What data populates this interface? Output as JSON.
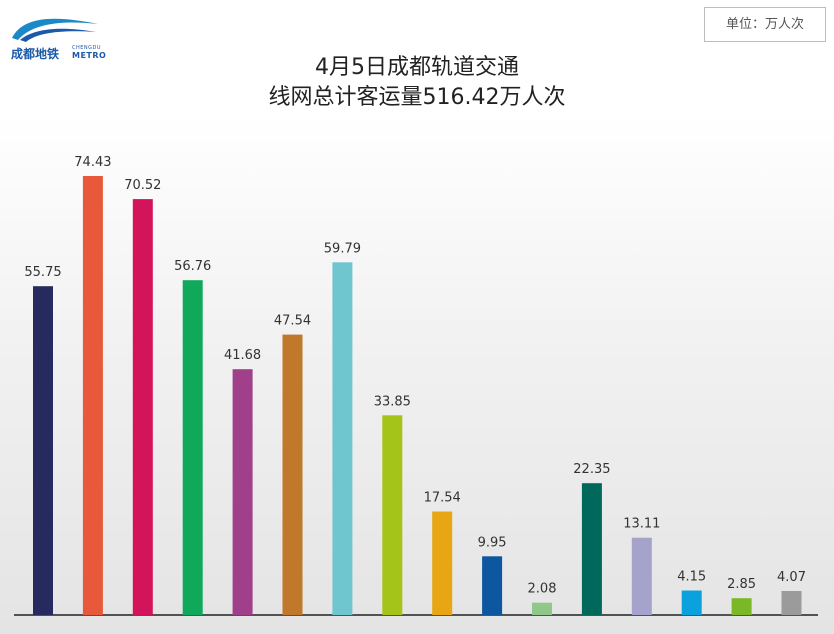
{
  "brand": {
    "name_cn": "成都地铁",
    "name_en_top": "CHENGDU",
    "name_en_bottom": "METRO",
    "color": "#1b5aa8"
  },
  "unit_label": "单位：万人次",
  "title_line1": "4月5日成都轨道交通",
  "title_line2": "线网总计客运量516.42万人次",
  "chart_data": {
    "type": "bar",
    "title": "4月5日成都轨道交通 线网总计客运量516.42万人次",
    "unit": "单位：万人次",
    "categories": [
      "",
      "",
      "",
      "",
      "",
      "",
      "",
      "",
      "",
      "",
      "",
      "",
      "",
      "",
      "",
      ""
    ],
    "values": [
      55.75,
      74.43,
      70.52,
      56.76,
      41.68,
      47.54,
      59.79,
      33.85,
      17.54,
      9.95,
      2.08,
      22.35,
      13.11,
      4.15,
      2.85,
      4.07
    ],
    "value_labels": [
      "55.75",
      "74.43",
      "70.52",
      "56.76",
      "41.68",
      "47.54",
      "59.79",
      "33.85",
      "17.54",
      "9.95",
      "2.08",
      "22.35",
      "13.11",
      "4.15",
      "2.85",
      "4.07"
    ],
    "colors": [
      "#262a5e",
      "#e8583a",
      "#d4145a",
      "#10a85a",
      "#a0408a",
      "#c0782a",
      "#70c6cf",
      "#a5c41a",
      "#e8a514",
      "#0d57a0",
      "#8fc98a",
      "#00695c",
      "#a5a2cc",
      "#0aa1dc",
      "#7ab827",
      "#9b9b9b"
    ],
    "ylim": [
      0,
      75
    ],
    "grid": false,
    "legend": "none"
  }
}
